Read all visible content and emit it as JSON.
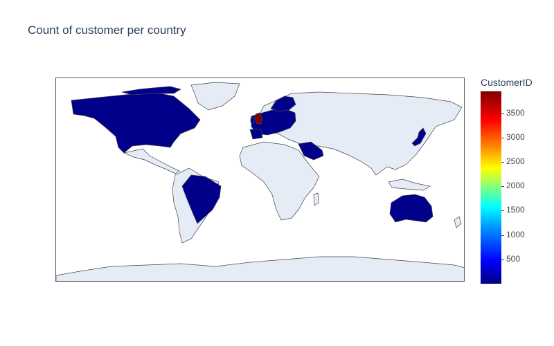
{
  "title": "Count of customer per country",
  "colorbar": {
    "title": "CustomerID",
    "ticks": [
      "500",
      "1000",
      "1500",
      "2000",
      "2500",
      "3000",
      "3500"
    ]
  },
  "colors": {
    "land": "#e5ecf6",
    "low": "#00008b",
    "high": "#800000",
    "border": "#444444"
  },
  "chart_data": {
    "type": "choropleth",
    "color_scale": "Jet",
    "zmin": 0,
    "zmax": 3950,
    "highlighted_countries": [
      {
        "country": "United Kingdom",
        "level": "high"
      },
      {
        "country": "Canada",
        "level": "low"
      },
      {
        "country": "United States",
        "level": "low"
      },
      {
        "country": "Brazil",
        "level": "low"
      },
      {
        "country": "Australia",
        "level": "low"
      },
      {
        "country": "Saudi Arabia",
        "level": "low"
      },
      {
        "country": "Japan",
        "level": "low"
      }
    ]
  }
}
